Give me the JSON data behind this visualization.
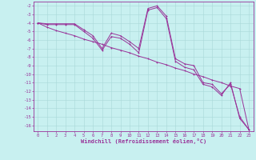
{
  "xlabel": "Windchill (Refroidissement éolien,°C)",
  "bg_color": "#c8f0f0",
  "grid_color": "#a8d8d8",
  "line_color": "#993399",
  "xlim": [
    -0.5,
    23.5
  ],
  "ylim": [
    -16.7,
    -1.5
  ],
  "yticks": [
    -2,
    -3,
    -4,
    -5,
    -6,
    -7,
    -8,
    -9,
    -10,
    -11,
    -12,
    -13,
    -14,
    -15,
    -16
  ],
  "xticks": [
    0,
    1,
    2,
    3,
    4,
    5,
    6,
    7,
    8,
    9,
    10,
    11,
    12,
    13,
    14,
    15,
    16,
    17,
    18,
    19,
    20,
    21,
    22,
    23
  ],
  "x_straight": [
    0,
    1,
    2,
    3,
    4,
    5,
    6,
    7,
    8,
    9,
    10,
    11,
    12,
    13,
    14,
    15,
    16,
    17,
    18,
    19,
    20,
    21,
    22,
    23
  ],
  "y_straight": [
    -4.0,
    -4.5,
    -4.9,
    -5.2,
    -5.5,
    -5.9,
    -6.2,
    -6.5,
    -6.9,
    -7.2,
    -7.5,
    -7.9,
    -8.2,
    -8.6,
    -8.9,
    -9.3,
    -9.6,
    -10.0,
    -10.3,
    -10.7,
    -11.0,
    -11.4,
    -11.7,
    -16.5
  ],
  "x_curve1": [
    0,
    1,
    2,
    3,
    4,
    5,
    6,
    7,
    8,
    9,
    10,
    11,
    12,
    13,
    14,
    15,
    16,
    17,
    18,
    19,
    20,
    21,
    22,
    23
  ],
  "y_curve1": [
    -4.0,
    -4.2,
    -4.2,
    -4.2,
    -4.2,
    -5.0,
    -5.8,
    -7.2,
    -5.6,
    -5.8,
    -6.5,
    -7.5,
    -2.5,
    -2.2,
    -3.5,
    -8.5,
    -9.2,
    -9.5,
    -11.2,
    -11.5,
    -12.5,
    -11.0,
    -15.2,
    -16.5
  ],
  "x_curve2": [
    0,
    1,
    2,
    3,
    4,
    5,
    6,
    7,
    8,
    9,
    10,
    11,
    12,
    13,
    14,
    15,
    16,
    17,
    18,
    19,
    20,
    21,
    22,
    23
  ],
  "y_curve2": [
    -4.0,
    -4.1,
    -4.1,
    -4.1,
    -4.1,
    -4.8,
    -5.5,
    -7.0,
    -5.2,
    -5.5,
    -6.2,
    -7.0,
    -2.3,
    -2.0,
    -3.2,
    -8.2,
    -8.8,
    -9.0,
    -11.0,
    -11.2,
    -12.3,
    -11.2,
    -15.0,
    -16.5
  ]
}
